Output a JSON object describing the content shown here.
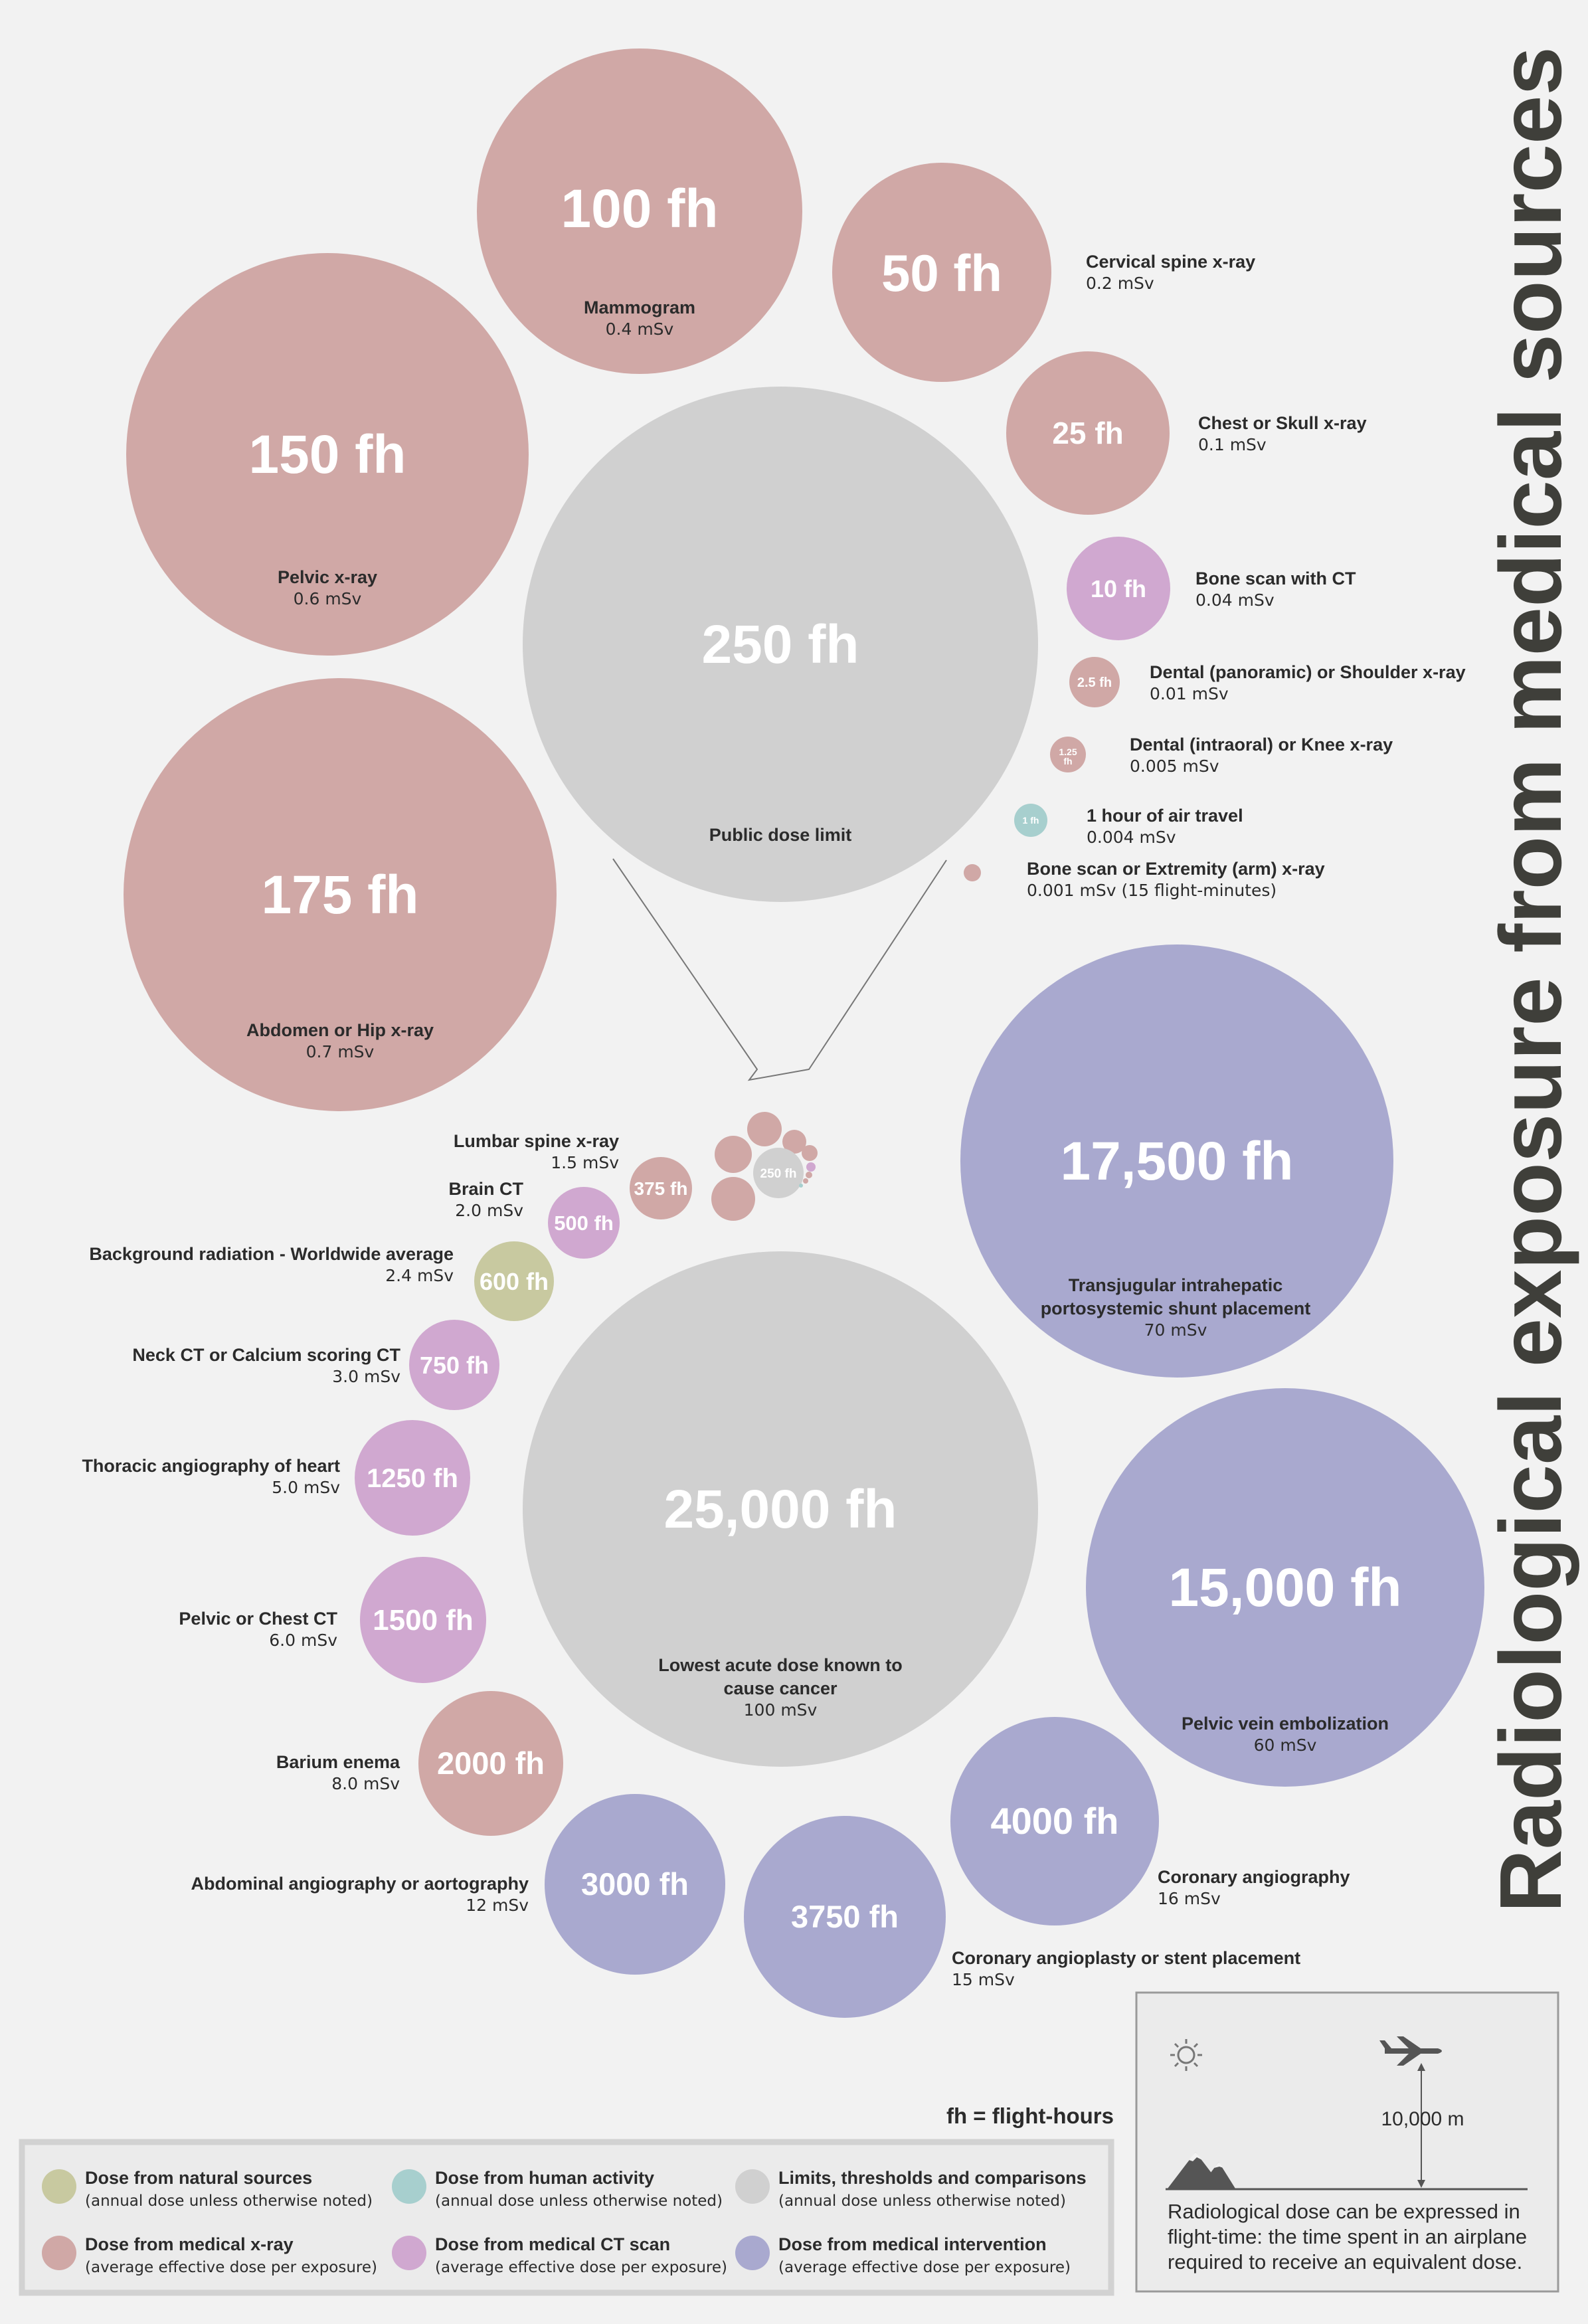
{
  "title": "Radiological exposure from medical sources",
  "colors": {
    "background": "#f2f2f2",
    "natural": "#c8c9a0",
    "human_activity": "#a7cfce",
    "limits": "#d0d0d0",
    "medical_xray": "#d0a8a6",
    "medical_ct": "#d0a8d0",
    "medical_intervention": "#a9a9cf",
    "text": "#2b2b2b"
  },
  "chart_data": {
    "type": "bubble",
    "unit": "fh",
    "items": [
      {
        "fh_label": "100 fh",
        "name": "Mammogram",
        "dose": "0.4 mSv",
        "category": "medical_xray",
        "fh_value": 100
      },
      {
        "fh_label": "50 fh",
        "name": "Cervical spine x-ray",
        "dose": "0.2 mSv",
        "category": "medical_xray",
        "fh_value": 50
      },
      {
        "fh_label": "25 fh",
        "name": "Chest or Skull x-ray",
        "dose": "0.1 mSv",
        "category": "medical_xray",
        "fh_value": 25
      },
      {
        "fh_label": "150 fh",
        "name": "Pelvic x-ray",
        "dose": "0.6 mSv",
        "category": "medical_xray",
        "fh_value": 150
      },
      {
        "fh_label": "250 fh",
        "name": "Public dose limit",
        "dose": "",
        "category": "limits",
        "fh_value": 250
      },
      {
        "fh_label": "10 fh",
        "name": "Bone scan with CT",
        "dose": "0.04 mSv",
        "category": "medical_ct",
        "fh_value": 10
      },
      {
        "fh_label": "2.5 fh",
        "name": "Dental (panoramic) or Shoulder x-ray",
        "dose": "0.01 mSv",
        "category": "medical_xray",
        "fh_value": 2.5
      },
      {
        "fh_label": "1.25 fh",
        "name": "Dental (intraoral) or Knee x-ray",
        "dose": "0.005 mSv",
        "category": "medical_xray",
        "fh_value": 1.25
      },
      {
        "fh_label": "1 fh",
        "name": "1 hour of air travel",
        "dose": "0.004 mSv",
        "category": "human_activity",
        "fh_value": 1
      },
      {
        "fh_label": "",
        "name": "Bone scan or Extremity (arm) x-ray",
        "dose": "0.001 mSv (15 flight-minutes)",
        "category": "medical_xray",
        "fh_value": 0.25
      },
      {
        "fh_label": "175 fh",
        "name": "Abdomen or Hip x-ray",
        "dose": "0.7 mSv",
        "category": "medical_xray",
        "fh_value": 175
      },
      {
        "fh_label": "17,500 fh",
        "name": "Transjugular intrahepatic portosystemic shunt placement",
        "dose": "70 mSv",
        "category": "medical_intervention",
        "fh_value": 17500
      },
      {
        "fh_label": "375 fh",
        "name": "Lumbar spine x-ray",
        "dose": "1.5 mSv",
        "category": "medical_xray",
        "fh_value": 375
      },
      {
        "fh_label": "500 fh",
        "name": "Brain CT",
        "dose": "2.0 mSv",
        "category": "medical_ct",
        "fh_value": 500
      },
      {
        "fh_label": "600 fh",
        "name": "Background radiation -  Worldwide average",
        "dose": "2.4 mSv",
        "category": "natural",
        "fh_value": 600
      },
      {
        "fh_label": "750 fh",
        "name": "Neck CT or Calcium scoring CT",
        "dose": "3.0 mSv",
        "category": "medical_ct",
        "fh_value": 750
      },
      {
        "fh_label": "1250 fh",
        "name": "Thoracic angiography of heart",
        "dose": "5.0 mSv",
        "category": "medical_ct",
        "fh_value": 1250
      },
      {
        "fh_label": "1500 fh",
        "name": "Pelvic or Chest CT",
        "dose": "6.0 mSv",
        "category": "medical_ct",
        "fh_value": 1500
      },
      {
        "fh_label": "2000 fh",
        "name": "Barium enema",
        "dose": "8.0 mSv",
        "category": "medical_xray",
        "fh_value": 2000
      },
      {
        "fh_label": "3000 fh",
        "name": "Abdominal angiography or aortography",
        "dose": "12 mSv",
        "category": "medical_intervention",
        "fh_value": 3000
      },
      {
        "fh_label": "3750 fh",
        "name": "Coronary angioplasty or stent placement",
        "dose": "15 mSv",
        "category": "medical_intervention",
        "fh_value": 3750
      },
      {
        "fh_label": "4000 fh",
        "name": "Coronary angiography",
        "dose": "16 mSv",
        "category": "medical_intervention",
        "fh_value": 4000
      },
      {
        "fh_label": "25,000 fh",
        "name": "Lowest acute dose known to cause cancer",
        "dose": "100 mSv",
        "category": "limits",
        "fh_value": 25000
      },
      {
        "fh_label": "15,000 fh",
        "name": "Pelvic vein embolization",
        "dose": "60 mSv",
        "category": "medical_intervention",
        "fh_value": 15000
      }
    ],
    "inset_label": "250 fh"
  },
  "legend": {
    "fh_definition": "fh = flight-hours",
    "entries": [
      {
        "title": "Dose from natural sources",
        "sub": "(annual dose unless otherwise noted)",
        "category": "natural"
      },
      {
        "title": "Dose from human activity",
        "sub": "(annual dose unless otherwise noted)",
        "category": "human_activity"
      },
      {
        "title": "Limits, thresholds and comparisons",
        "sub": "(annual dose unless otherwise noted)",
        "category": "limits"
      },
      {
        "title": "Dose from medical x-ray",
        "sub": "(average effective dose per exposure)",
        "category": "medical_xray"
      },
      {
        "title": "Dose from medical CT scan",
        "sub": "(average effective dose per exposure)",
        "category": "medical_ct"
      },
      {
        "title": "Dose from medical intervention",
        "sub": "(average effective dose per exposure)",
        "category": "medical_intervention"
      }
    ]
  },
  "explainer": {
    "altitude": "10,000 m",
    "text_lines": [
      "Radiological dose can be expressed in",
      "flight-time: the time spent in an airplane",
      "required to receive an equivalent dose."
    ],
    "icons": [
      "sun-icon",
      "airplane-icon",
      "mountain-icon"
    ]
  }
}
